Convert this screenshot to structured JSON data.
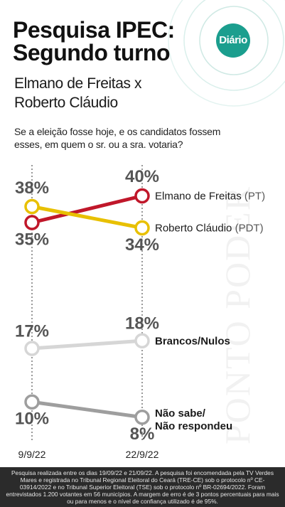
{
  "header": {
    "title": "Pesquisa IPEC: Segundo turno",
    "subtitle": "Elmano de Freitas x Roberto Cláudio",
    "question": "Se a eleição fosse hoje, e os candidatos fossem esses, em quem o sr. ou a sra. votaria?",
    "logo_text": "Diário",
    "watermark": "PONTO PODER"
  },
  "footer": {
    "note": "Pesquisa realizada entre os dias 19/09/22 e 21/09/22. A pesquisa foi encomendada pela TV Verdes Mares e registrada no Tribunal Regional Eleitoral do Ceará (TRE-CE) sob o protocolo nº CE-03914/2022 e no Tribunal Superior Eleitoral (TSE) sob o protocolo nº BR-02694/2022. Foram entrevistados 1.200 votantes em 56 municípios. A margem de erro é de 3 pontos percentuais para mais ou para menos e o nível de confiança utilizado é de 95%."
  },
  "chart_data": {
    "type": "line",
    "x": [
      "9/9/22",
      "22/9/22"
    ],
    "series": [
      {
        "name": "Elmano de Freitas",
        "party": "(PT)",
        "values": [
          35,
          40
        ],
        "labels": [
          "35%",
          "40%"
        ],
        "color": "#c0172a"
      },
      {
        "name": "Roberto Cláudio",
        "party": "(PDT)",
        "values": [
          38,
          34
        ],
        "labels": [
          "38%",
          "34%"
        ],
        "color": "#e8c000"
      },
      {
        "name": "Brancos/Nulos",
        "party": "",
        "values": [
          17,
          18
        ],
        "labels": [
          "17%",
          "18%"
        ],
        "color": "#d6d6d6"
      },
      {
        "name": "Não sabe/ Não respondeu",
        "party": "",
        "values": [
          10,
          8
        ],
        "labels": [
          "10%",
          "8%"
        ],
        "color": "#9e9e9e"
      }
    ],
    "grid": false,
    "legend": "right"
  }
}
